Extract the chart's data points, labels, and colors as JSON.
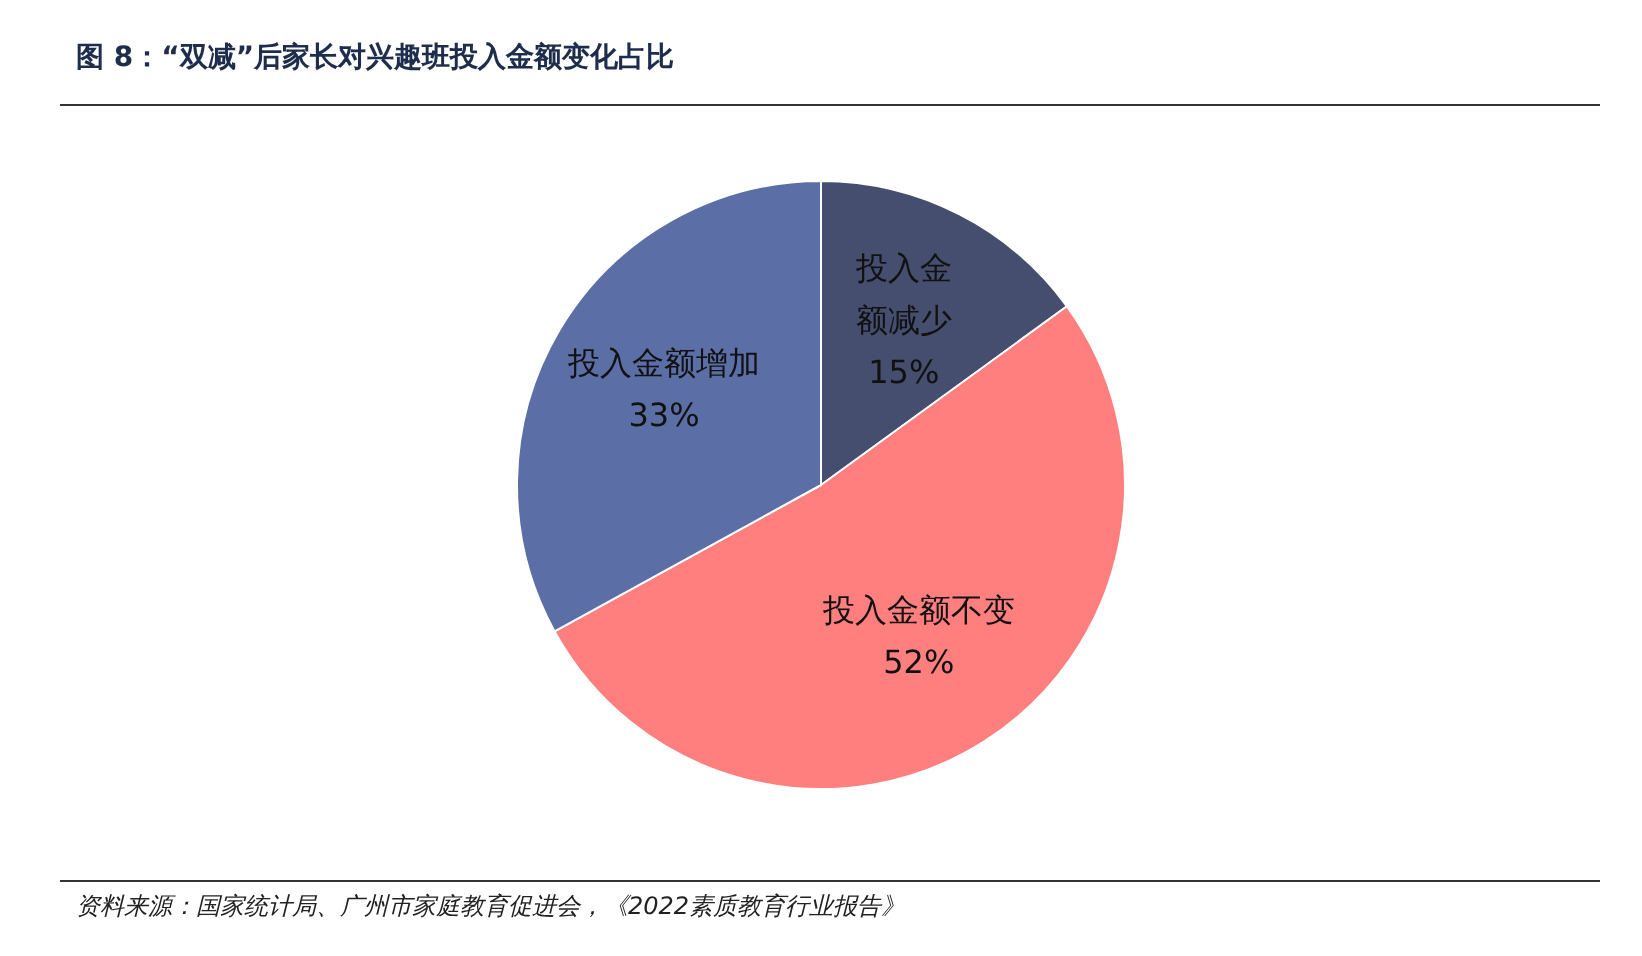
{
  "chart_data": {
    "type": "pie",
    "title": "图 8：“双减”后家长对兴趣班投入金额变化占比",
    "categories": [
      "投入金额减少",
      "投入金额不变",
      "投入金额增加"
    ],
    "values": [
      15,
      52,
      33
    ],
    "colors": [
      "#454e6e",
      "#ff7f7f",
      "#5b6ea6"
    ],
    "value_labels": [
      "15%",
      "52%",
      "33%"
    ],
    "legend": false,
    "annotations": [
      "资料来源：国家统计局、广州市家庭教育促进会，《2022素质教育行业报告》"
    ]
  }
}
